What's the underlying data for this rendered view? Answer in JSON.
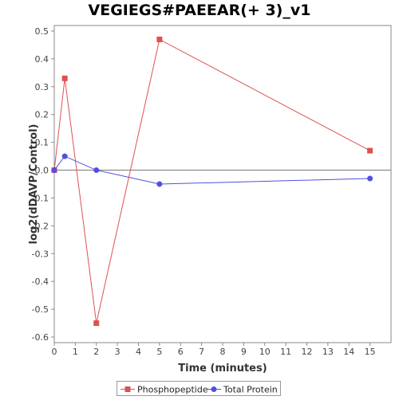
{
  "chart_data": {
    "type": "line",
    "title": "VEGIEGS#PAEEAR(+ 3)_v1",
    "xlabel": "Time (minutes)",
    "ylabel": "log2(dDAVP/Control)",
    "xlim": [
      0,
      16
    ],
    "ylim": [
      -0.62,
      0.52
    ],
    "x_ticks": [
      0,
      1,
      2,
      3,
      4,
      5,
      6,
      7,
      8,
      9,
      10,
      11,
      12,
      13,
      14,
      15
    ],
    "y_ticks": [
      0.5,
      0.4,
      0.3,
      0.2,
      0.1,
      0.0,
      -0.1,
      -0.2,
      -0.3,
      -0.4,
      -0.5,
      -0.6
    ],
    "y_tick_labels": [
      "0.5",
      "0.4",
      "0.3",
      "0.2",
      "0.1",
      "0.0",
      "-0.1",
      "-0.2",
      "-0.3",
      "-0.4",
      "-0.5",
      "-0.6"
    ],
    "grid": false,
    "legend_position": "bottom",
    "series": [
      {
        "name": "Phosphopeptide",
        "color": "#e05050",
        "marker": "square",
        "points": [
          [
            0,
            0.0
          ],
          [
            0.5,
            0.33
          ],
          [
            2,
            -0.55
          ],
          [
            5,
            0.47
          ],
          [
            15,
            0.07
          ]
        ]
      },
      {
        "name": "Total Protein",
        "color": "#5050e0",
        "marker": "circle",
        "points": [
          [
            0,
            0.0
          ],
          [
            0.5,
            0.05
          ],
          [
            2,
            0.0
          ],
          [
            5,
            -0.05
          ],
          [
            15,
            -0.03
          ]
        ]
      }
    ]
  }
}
